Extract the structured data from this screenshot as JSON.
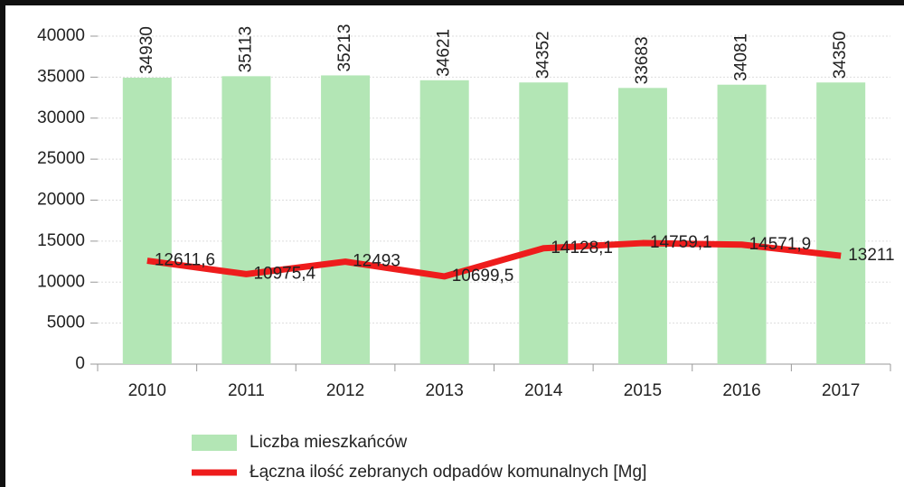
{
  "chart_data": {
    "type": "bar",
    "categories": [
      "2010",
      "2011",
      "2012",
      "2013",
      "2014",
      "2015",
      "2016",
      "2017"
    ],
    "series": [
      {
        "name": "Liczba mieszkańców",
        "type": "bar",
        "color": "#b3e6b5",
        "values": [
          34930,
          35113,
          35213,
          34621,
          34352,
          33683,
          34081,
          34350
        ]
      },
      {
        "name": "Łączna ilość zebranych odpadów komunalnych [Mg]",
        "type": "line",
        "color": "#ee1c1c",
        "values": [
          12611.6,
          10975.4,
          12493,
          10699.5,
          14128.1,
          14759.1,
          14571.9,
          13211
        ],
        "value_labels": [
          "12611,6",
          "10975,4",
          "12493",
          "10699,5",
          "14128,1",
          "14759,1",
          "14571,9",
          "13211"
        ]
      }
    ],
    "ylim": [
      0,
      40000
    ],
    "yticks": [
      0,
      5000,
      10000,
      15000,
      20000,
      25000,
      30000,
      35000,
      40000
    ],
    "grid": true
  }
}
